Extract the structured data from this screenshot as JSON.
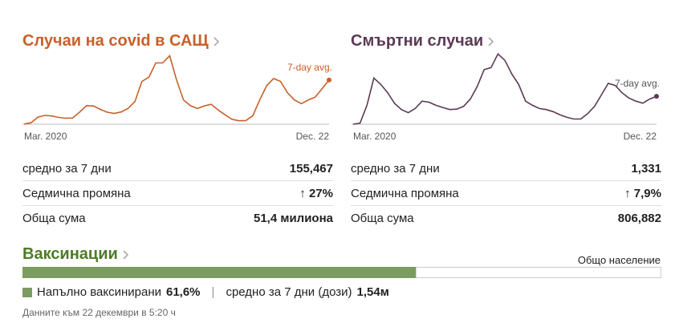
{
  "chart_data": [
    {
      "type": "line",
      "title": "Случаи на covid в САЩ",
      "annotation": "7-day avg.",
      "color": "#c8602a",
      "categories": [
        "Mar. 2020",
        null,
        null,
        null,
        null,
        null,
        null,
        null,
        null,
        null,
        null,
        null,
        null,
        null,
        null,
        null,
        null,
        null,
        null,
        null,
        null,
        null,
        null,
        null,
        null,
        null,
        null,
        null,
        null,
        null,
        null,
        null,
        null,
        null,
        null,
        null,
        null,
        null,
        null,
        null,
        null,
        null,
        null,
        null,
        "Dec. 22"
      ],
      "values": [
        500,
        5000,
        25000,
        31000,
        29000,
        24000,
        21000,
        22000,
        42000,
        65000,
        64000,
        52000,
        42000,
        38000,
        43000,
        55000,
        80000,
        150000,
        165000,
        215000,
        215000,
        240000,
        155000,
        85000,
        65000,
        55000,
        64000,
        70000,
        50000,
        33000,
        17000,
        12000,
        13000,
        30000,
        85000,
        135000,
        160000,
        150000,
        110000,
        85000,
        72000,
        85000,
        95000,
        125000,
        155000
      ],
      "ylim": [
        0,
        250000
      ]
    },
    {
      "type": "line",
      "title": "Смъртни случаи",
      "annotation": "7-day avg.",
      "color": "#5b3a55",
      "categories": [
        "Mar. 2020",
        null,
        null,
        null,
        null,
        null,
        null,
        null,
        null,
        null,
        null,
        null,
        null,
        null,
        null,
        null,
        null,
        null,
        null,
        null,
        null,
        null,
        null,
        null,
        null,
        null,
        null,
        null,
        null,
        null,
        null,
        null,
        null,
        null,
        null,
        null,
        null,
        null,
        null,
        null,
        null,
        null,
        null,
        null,
        "Dec. 22"
      ],
      "values": [
        0,
        50,
        900,
        2200,
        1900,
        1500,
        1000,
        700,
        550,
        750,
        1100,
        1050,
        900,
        800,
        700,
        720,
        850,
        1200,
        1800,
        2600,
        2700,
        3350,
        3050,
        2400,
        1900,
        1100,
        900,
        750,
        700,
        600,
        450,
        330,
        250,
        250,
        500,
        850,
        1400,
        1950,
        1850,
        1500,
        1250,
        1100,
        1000,
        1200,
        1331
      ],
      "ylim": [
        0,
        3400
      ]
    }
  ],
  "stats": [
    [
      [
        "средно за 7 дни",
        "155,467"
      ],
      [
        "Седмична промяна",
        "27%"
      ],
      [
        "Обща сума",
        "51,4 милиона"
      ]
    ],
    [
      [
        "средно за 7 дни",
        "1,331"
      ],
      [
        "Седмична промяна",
        "7,9%"
      ],
      [
        "Обща сума",
        "806,882"
      ]
    ]
  ],
  "vaccinations": {
    "title": "Ваксинации",
    "total_label": "Общо население",
    "color": "#7b9c60",
    "full_label": "Напълно ваксинирани",
    "full_value": 61.6,
    "full_value_label": "61,6%",
    "doses_label": "средно за 7 дни (дози)",
    "doses_value": "1,54м"
  },
  "footer": "Данните към 22 декември в 5:20 ч"
}
